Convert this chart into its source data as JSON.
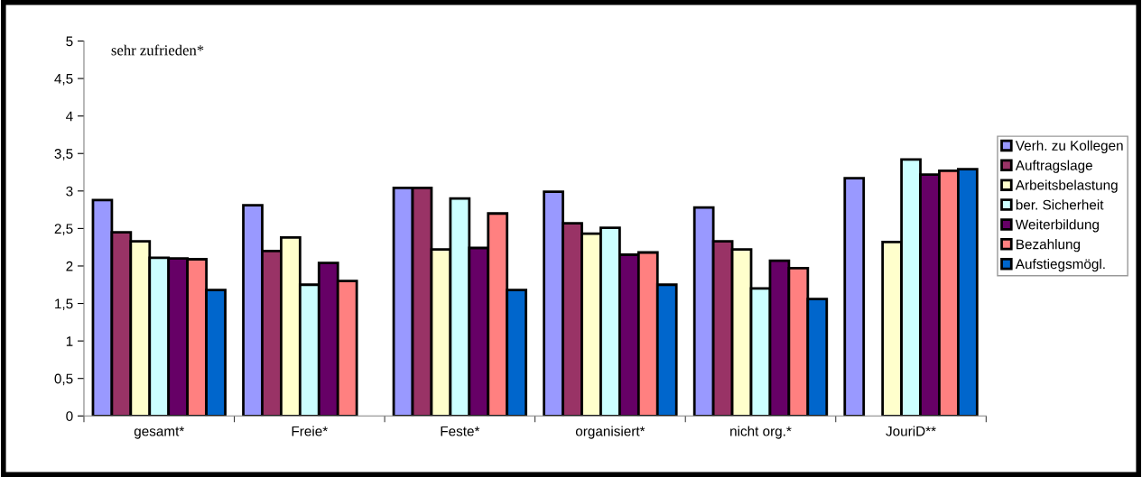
{
  "chart_data": {
    "type": "bar",
    "categories": [
      "gesamt*",
      "Freie*",
      "Feste*",
      "organisiert*",
      "nicht org.*",
      "JouriD**"
    ],
    "series": [
      {
        "name": "Verh. zu Kollegen",
        "color": "#9999ff",
        "values": [
          2.88,
          2.81,
          3.04,
          2.99,
          2.78,
          3.17
        ]
      },
      {
        "name": "Auftragslage",
        "color": "#993366",
        "values": [
          2.45,
          2.2,
          3.04,
          2.57,
          2.33,
          null
        ]
      },
      {
        "name": "Arbeitsbelastung",
        "color": "#ffffcc",
        "values": [
          2.33,
          2.38,
          2.22,
          2.43,
          2.22,
          2.32
        ]
      },
      {
        "name": "ber. Sicherheit",
        "color": "#ccffff",
        "values": [
          2.11,
          1.75,
          2.9,
          2.51,
          1.7,
          3.42
        ]
      },
      {
        "name": "Weiterbildung",
        "color": "#660066",
        "values": [
          2.1,
          2.04,
          2.24,
          2.15,
          2.07,
          3.22
        ]
      },
      {
        "name": "Bezahlung",
        "color": "#ff8080",
        "values": [
          2.09,
          1.8,
          2.7,
          2.18,
          1.97,
          3.27
        ]
      },
      {
        "name": "Aufstiegsmögl.",
        "color": "#0066cc",
        "values": [
          1.68,
          null,
          1.68,
          1.75,
          1.56,
          3.29
        ]
      }
    ],
    "ylim": [
      0,
      5
    ],
    "yticks": [
      0,
      {
        "value": 0.5,
        "label": "0,5"
      },
      1,
      {
        "value": 1.5,
        "label": "1,5"
      },
      2,
      {
        "value": 2.5,
        "label": "2,5"
      },
      3,
      {
        "value": 3.5,
        "label": "3,5"
      },
      4,
      {
        "value": 4.5,
        "label": "4,5"
      },
      5
    ],
    "annotations": [
      "sehr zufrieden*"
    ],
    "legend": "right",
    "grid": false
  }
}
